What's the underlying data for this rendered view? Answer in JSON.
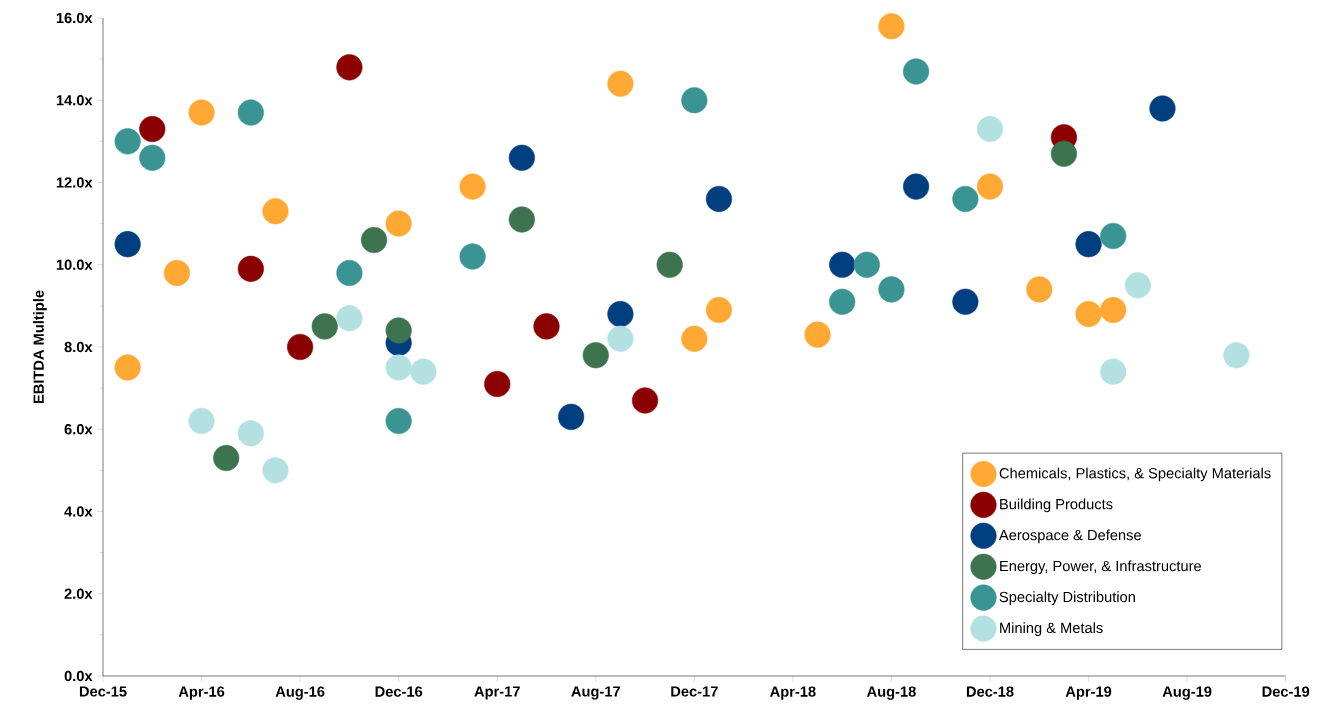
{
  "chart_data": {
    "type": "scatter",
    "ylabel": "EBITDA Multiple",
    "marker": "circle",
    "legend": "bottom right",
    "grid": false,
    "xlim": [
      "2015-12",
      "2019-12"
    ],
    "xticks": [
      {
        "value": "2015-12",
        "label": "Dec-15"
      },
      {
        "value": "2016-04",
        "label": "Apr-16"
      },
      {
        "value": "2016-08",
        "label": "Aug-16"
      },
      {
        "value": "2016-12",
        "label": "Dec-16"
      },
      {
        "value": "2017-04",
        "label": "Apr-17"
      },
      {
        "value": "2017-08",
        "label": "Aug-17"
      },
      {
        "value": "2017-12",
        "label": "Dec-17"
      },
      {
        "value": "2018-04",
        "label": "Apr-18"
      },
      {
        "value": "2018-08",
        "label": "Aug-18"
      },
      {
        "value": "2018-12",
        "label": "Dec-18"
      },
      {
        "value": "2019-04",
        "label": "Apr-19"
      },
      {
        "value": "2019-08",
        "label": "Aug-19"
      },
      {
        "value": "2019-12",
        "label": "Dec-19"
      }
    ],
    "ylim": [
      0,
      16
    ],
    "yticks": [
      {
        "value": 0,
        "label": "0.0x"
      },
      {
        "value": 2,
        "label": "2.0x"
      },
      {
        "value": 4,
        "label": "4.0x"
      },
      {
        "value": 6,
        "label": "6.0x"
      },
      {
        "value": 8,
        "label": "8.0x"
      },
      {
        "value": 10,
        "label": "10.0x"
      },
      {
        "value": 12,
        "label": "12.0x"
      },
      {
        "value": 14,
        "label": "14.0x"
      },
      {
        "value": 16,
        "label": "16.0x"
      }
    ],
    "series": [
      {
        "name": "Chemicals, Plastics, & Specialty Materials",
        "color": "#ffa833",
        "x": [
          "2016-01",
          "2016-03",
          "2016-04",
          "2016-07",
          "2016-12",
          "2017-03",
          "2017-09",
          "2017-12",
          "2018-01",
          "2018-05",
          "2018-08",
          "2018-12",
          "2019-02",
          "2019-04",
          "2019-05"
        ],
        "values": [
          7.5,
          9.8,
          13.7,
          11.3,
          11.0,
          11.9,
          14.4,
          8.2,
          8.9,
          8.3,
          15.8,
          11.9,
          9.4,
          8.8,
          8.9
        ]
      },
      {
        "name": "Building Products",
        "color": "#8b0000",
        "x": [
          "2016-02",
          "2016-06",
          "2016-08",
          "2016-10",
          "2017-04",
          "2017-06",
          "2017-10",
          "2019-03"
        ],
        "values": [
          13.3,
          9.9,
          8.0,
          14.8,
          7.1,
          8.5,
          6.7,
          13.1
        ]
      },
      {
        "name": "Aerospace & Defense",
        "color": "#003f7f",
        "x": [
          "2016-01",
          "2016-12",
          "2017-05",
          "2017-07",
          "2017-09",
          "2018-01",
          "2018-06",
          "2018-09",
          "2018-11",
          "2019-04",
          "2019-07"
        ],
        "values": [
          10.5,
          8.1,
          12.6,
          6.3,
          8.8,
          11.6,
          10.0,
          11.9,
          9.1,
          10.5,
          13.8
        ]
      },
      {
        "name": "Energy, Power, & Infrastructure",
        "color": "#3e7350",
        "x": [
          "2016-05",
          "2016-09",
          "2016-11",
          "2016-12",
          "2017-05",
          "2017-08",
          "2017-11",
          "2019-03"
        ],
        "values": [
          5.3,
          8.5,
          10.6,
          8.4,
          11.1,
          7.8,
          10.0,
          12.7
        ]
      },
      {
        "name": "Specialty Distribution",
        "color": "#3a9494",
        "x": [
          "2016-01",
          "2016-02",
          "2016-06",
          "2016-10",
          "2016-12",
          "2017-03",
          "2017-12",
          "2018-06",
          "2018-07",
          "2018-08",
          "2018-09",
          "2018-11",
          "2019-05"
        ],
        "values": [
          13.0,
          12.6,
          13.7,
          9.8,
          6.2,
          10.2,
          14.0,
          9.1,
          10.0,
          9.4,
          14.7,
          11.6,
          10.7
        ]
      },
      {
        "name": "Mining & Metals",
        "color": "#b3e0e0",
        "x": [
          "2016-04",
          "2016-06",
          "2016-07",
          "2016-10",
          "2016-12",
          "2017-01",
          "2017-09",
          "2018-12",
          "2019-05",
          "2019-06",
          "2019-10"
        ],
        "values": [
          6.2,
          5.9,
          5.0,
          8.7,
          7.5,
          7.4,
          8.2,
          13.3,
          7.4,
          9.5,
          7.8
        ]
      }
    ]
  }
}
